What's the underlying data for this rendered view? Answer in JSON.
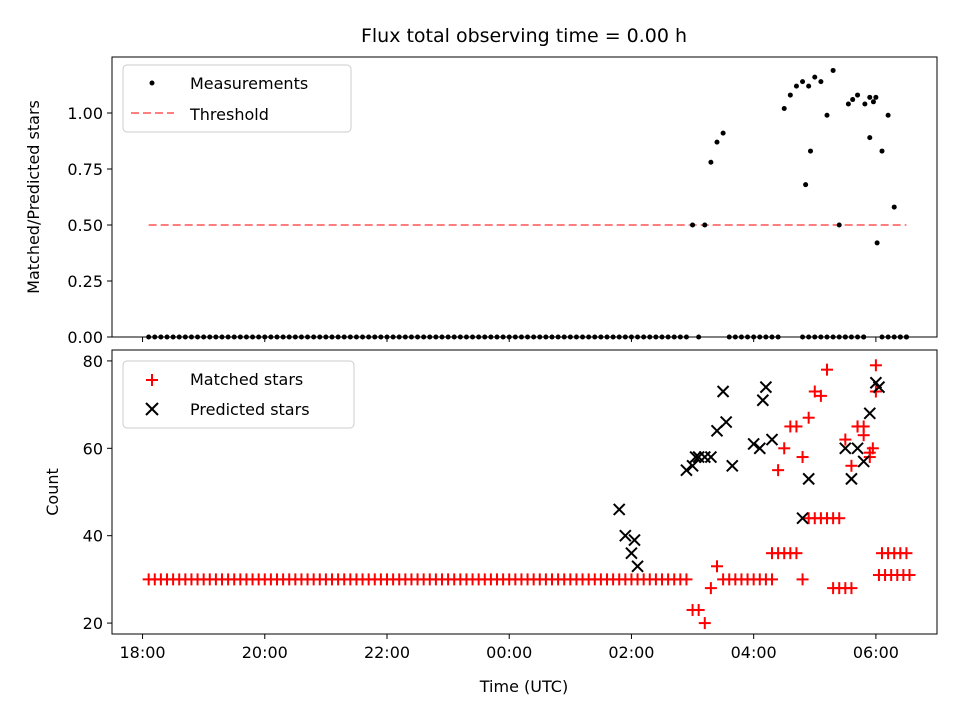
{
  "chart_data": {
    "title": "Flux total observing time = 0.00 h",
    "xlabel": "Time (UTC)",
    "x_ticks": [
      {
        "h": 18,
        "label": "18:00"
      },
      {
        "h": 20,
        "label": "20:00"
      },
      {
        "h": 22,
        "label": "22:00"
      },
      {
        "h": 24,
        "label": "00:00"
      },
      {
        "h": 26,
        "label": "02:00"
      },
      {
        "h": 28,
        "label": "04:00"
      },
      {
        "h": 30,
        "label": "06:00"
      }
    ],
    "xlim": [
      17.5,
      31.0
    ],
    "time_grid": {
      "start_h": 18.1,
      "step_h": 0.1,
      "count": 125
    },
    "top": {
      "type": "scatter",
      "ylabel": "Matched/Predicted stars",
      "ylim": [
        0,
        1.25
      ],
      "y_ticks": [
        "0.00",
        "0.25",
        "0.50",
        "0.75",
        "1.00"
      ],
      "threshold": 0.5,
      "threshold_x": [
        18.1,
        30.5
      ],
      "legend": [
        "Measurements",
        "Threshold"
      ],
      "colors": {
        "points": "#000000",
        "threshold": "#ff7f7f"
      },
      "ratio_values": [
        0,
        0,
        0,
        0,
        0,
        0,
        0,
        0,
        0,
        0,
        0,
        0,
        0,
        0,
        0,
        0,
        0,
        0,
        0,
        0,
        0,
        0,
        0,
        0,
        0,
        0,
        0,
        0,
        0,
        0,
        0,
        0,
        0,
        0,
        0,
        0,
        0,
        0,
        0,
        0,
        0,
        0,
        0,
        0,
        0,
        0,
        0,
        0,
        0,
        0,
        0,
        0,
        0,
        0,
        0,
        0,
        0,
        0,
        0,
        0,
        0,
        0,
        0,
        0,
        0,
        0,
        0,
        0,
        0,
        0,
        0,
        0,
        0,
        0,
        0,
        0,
        0,
        0,
        0,
        0,
        0,
        0,
        0,
        0,
        0,
        0,
        0,
        0,
        0,
        0.5,
        0,
        0.5,
        0.78,
        0.87,
        0.91,
        0,
        0,
        0,
        0,
        0,
        0,
        0,
        0,
        0,
        1.02,
        1.08,
        1.12,
        1.14,
        1.12,
        1.16,
        1.14,
        0.99,
        1.19,
        0.5,
        0,
        0,
        0,
        0,
        1.07,
        1.07,
        0.83,
        0.99,
        0.58,
        0,
        0
      ],
      "extra_points": [
        {
          "x": 28.8,
          "y": 0
        },
        {
          "x": 28.9,
          "y": 0
        },
        {
          "x": 29.0,
          "y": 0
        },
        {
          "x": 29.1,
          "y": 0
        },
        {
          "x": 29.2,
          "y": 0
        },
        {
          "x": 28.85,
          "y": 0.68
        },
        {
          "x": 28.93,
          "y": 0.83
        },
        {
          "x": 29.3,
          "y": 0
        },
        {
          "x": 29.4,
          "y": 0
        },
        {
          "x": 29.5,
          "y": 0
        },
        {
          "x": 29.55,
          "y": 1.04
        },
        {
          "x": 29.62,
          "y": 1.06
        },
        {
          "x": 29.7,
          "y": 1.08
        },
        {
          "x": 29.8,
          "y": 0
        },
        {
          "x": 29.82,
          "y": 1.04
        },
        {
          "x": 29.9,
          "y": 0.89
        },
        {
          "x": 29.96,
          "y": 1.05
        },
        {
          "x": 30.02,
          "y": 0.42
        },
        {
          "x": 30.1,
          "y": 0
        },
        {
          "x": 30.2,
          "y": 0
        },
        {
          "x": 30.3,
          "y": 0
        },
        {
          "x": 30.4,
          "y": 0
        },
        {
          "x": 30.5,
          "y": 0
        }
      ]
    },
    "bottom": {
      "type": "scatter",
      "ylabel": "Count",
      "ylim": [
        17.5,
        82.5
      ],
      "y_ticks": [
        20,
        40,
        60,
        80
      ],
      "legend": [
        "Matched stars",
        "Predicted stars"
      ],
      "colors": {
        "matched": "#ff0000",
        "predicted": "#000000"
      },
      "matched_count": [
        30,
        30,
        30,
        30,
        30,
        30,
        30,
        30,
        30,
        30,
        30,
        30,
        30,
        30,
        30,
        30,
        30,
        30,
        30,
        30,
        30,
        30,
        30,
        30,
        30,
        30,
        30,
        30,
        30,
        30,
        30,
        30,
        30,
        30,
        30,
        30,
        30,
        30,
        30,
        30,
        30,
        30,
        30,
        30,
        30,
        30,
        30,
        30,
        30,
        30,
        30,
        30,
        30,
        30,
        30,
        30,
        30,
        30,
        30,
        30,
        30,
        30,
        30,
        30,
        30,
        30,
        30,
        30,
        30,
        30,
        30,
        30,
        30,
        30,
        30,
        30,
        30,
        30,
        30,
        30,
        30,
        30,
        30,
        30,
        30,
        30,
        30,
        30,
        30,
        23,
        23,
        20,
        28,
        33,
        30,
        30,
        30,
        30,
        30,
        30,
        30,
        30,
        30,
        55,
        60,
        65,
        65,
        58,
        67,
        73,
        72,
        78,
        28,
        28,
        28,
        28,
        65,
        63,
        59,
        73,
        36,
        36,
        36,
        36,
        36
      ],
      "matched_extra": [
        {
          "x": 28.3,
          "y": 36
        },
        {
          "x": 28.4,
          "y": 36
        },
        {
          "x": 28.5,
          "y": 36
        },
        {
          "x": 28.6,
          "y": 36
        },
        {
          "x": 28.7,
          "y": 36
        },
        {
          "x": 28.8,
          "y": 30
        },
        {
          "x": 28.9,
          "y": 44
        },
        {
          "x": 29.0,
          "y": 44
        },
        {
          "x": 29.1,
          "y": 44
        },
        {
          "x": 29.2,
          "y": 44
        },
        {
          "x": 29.3,
          "y": 44
        },
        {
          "x": 29.4,
          "y": 44
        },
        {
          "x": 29.5,
          "y": 62
        },
        {
          "x": 29.6,
          "y": 56
        },
        {
          "x": 29.7,
          "y": 65
        },
        {
          "x": 29.8,
          "y": 65
        },
        {
          "x": 29.9,
          "y": 58
        },
        {
          "x": 29.95,
          "y": 60
        },
        {
          "x": 30.0,
          "y": 79
        },
        {
          "x": 30.05,
          "y": 31
        },
        {
          "x": 30.15,
          "y": 31
        },
        {
          "x": 30.25,
          "y": 31
        },
        {
          "x": 30.35,
          "y": 31
        },
        {
          "x": 30.45,
          "y": 31
        },
        {
          "x": 30.55,
          "y": 31
        }
      ],
      "predicted": [
        {
          "x": 25.8,
          "y": 46
        },
        {
          "x": 25.9,
          "y": 40
        },
        {
          "x": 26.0,
          "y": 36
        },
        {
          "x": 26.05,
          "y": 39
        },
        {
          "x": 26.1,
          "y": 33
        },
        {
          "x": 26.9,
          "y": 55
        },
        {
          "x": 27.0,
          "y": 56
        },
        {
          "x": 27.05,
          "y": 58
        },
        {
          "x": 27.1,
          "y": 58
        },
        {
          "x": 27.2,
          "y": 58
        },
        {
          "x": 27.3,
          "y": 58
        },
        {
          "x": 27.4,
          "y": 64
        },
        {
          "x": 27.5,
          "y": 73
        },
        {
          "x": 27.55,
          "y": 66
        },
        {
          "x": 27.65,
          "y": 56
        },
        {
          "x": 28.0,
          "y": 61
        },
        {
          "x": 28.1,
          "y": 60
        },
        {
          "x": 28.15,
          "y": 71
        },
        {
          "x": 28.2,
          "y": 74
        },
        {
          "x": 28.3,
          "y": 62
        },
        {
          "x": 28.8,
          "y": 44
        },
        {
          "x": 28.9,
          "y": 53
        },
        {
          "x": 29.5,
          "y": 60
        },
        {
          "x": 29.6,
          "y": 53
        },
        {
          "x": 29.7,
          "y": 60
        },
        {
          "x": 29.8,
          "y": 57
        },
        {
          "x": 29.9,
          "y": 68
        },
        {
          "x": 30.0,
          "y": 75
        },
        {
          "x": 30.05,
          "y": 74
        }
      ]
    }
  }
}
